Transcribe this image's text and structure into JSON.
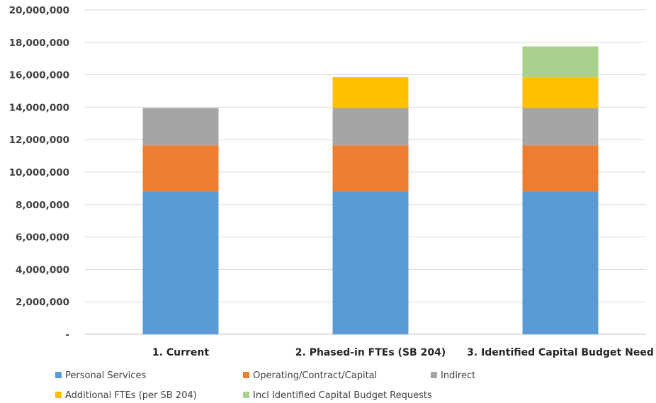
{
  "chart_data": {
    "type": "bar",
    "stacked": true,
    "title": "",
    "xlabel": "",
    "ylabel": "",
    "ylim": [
      0,
      20000000
    ],
    "y_tick_step": 2000000,
    "y_tick_labels": [
      "-",
      "2,000,000",
      "4,000,000",
      "6,000,000",
      "8,000,000",
      "10,000,000",
      "12,000,000",
      "14,000,000",
      "16,000,000",
      "18,000,000",
      "20,000,000"
    ],
    "grid": true,
    "legend_position": "bottom",
    "categories": [
      "1. Current",
      "2. Phased-in FTEs (SB 204)",
      "3. Identified Capital Budget Need"
    ],
    "series": [
      {
        "name": "Personal Services",
        "color": "#5B9BD5",
        "values": [
          8800000,
          8800000,
          8800000
        ]
      },
      {
        "name": "Operating/Contract/Capital",
        "color": "#ED7D31",
        "values": [
          2850000,
          2850000,
          2850000
        ]
      },
      {
        "name": "Indirect",
        "color": "#A5A5A5",
        "values": [
          2300000,
          2300000,
          2300000
        ]
      },
      {
        "name": "Additional FTEs (per SB 204)",
        "color": "#FFC000",
        "values": [
          0,
          1900000,
          1900000
        ]
      },
      {
        "name": "Incl Identified Capital Budget Requests",
        "color": "#A9D18E",
        "values": [
          0,
          0,
          1900000
        ]
      }
    ]
  }
}
